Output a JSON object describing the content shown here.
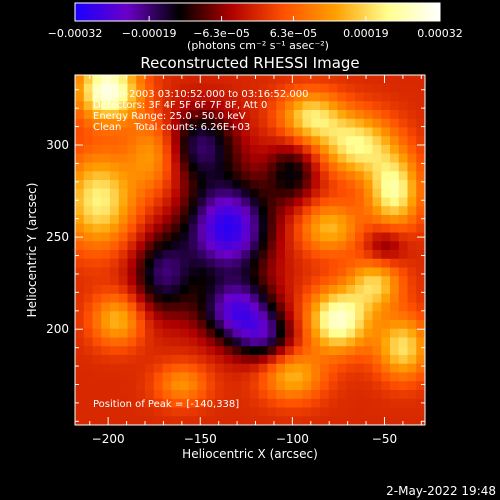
{
  "chart_data": {
    "type": "heatmap",
    "title": "Reconstructed RHESSI Image",
    "xlabel": "Heliocentric X (arcsec)",
    "ylabel": "Heliocentric Y (arcsec)",
    "xlim": [
      -218,
      -28
    ],
    "ylim": [
      148,
      338
    ],
    "x_ticks": [
      -200,
      -150,
      -100,
      -50
    ],
    "x_tick_labels": [
      "−200",
      "−150",
      "−100",
      "−50"
    ],
    "y_ticks": [
      200,
      250,
      300
    ],
    "y_tick_labels": [
      "200",
      "250",
      "300"
    ],
    "colorbar": {
      "range": [
        -0.00032,
        0.00032
      ],
      "ticks": [
        -0.00032,
        -0.00019,
        -6.3e-05,
        6.3e-05,
        0.00019,
        0.00032
      ],
      "tick_labels": [
        "−0.00032",
        "−0.00019",
        "−6.3e−05",
        "6.3e−05",
        "0.00019",
        "0.00032"
      ],
      "unit_label": "(photons cm⁻² s⁻¹ asec⁻²)",
      "colors": [
        "#1a00ff",
        "#6a00c8",
        "#000000",
        "#b00000",
        "#ff5000",
        "#ffa000",
        "#ffff90",
        "#ffffff"
      ]
    },
    "annotations": [
      "23-Jun-2003 03:10:52.000 to 03:16:52.000",
      "Detectors: 3F 4F 5F 6F 7F 8F, Att 0",
      "Energy Range: 25.0 - 50.0 keV",
      "Clean    Total counts: 6.26E+03"
    ],
    "peak_label": "Position of Peak = [-140,338]",
    "peak": {
      "x": -140,
      "y": 338
    },
    "intensity_field": {
      "grid": [
        40,
        40
      ],
      "background": 0.0,
      "features": [
        {
          "x": -200,
          "y": 330,
          "sx": 12,
          "sy": 12,
          "amp": 0.0003
        },
        {
          "x": -205,
          "y": 270,
          "sx": 14,
          "sy": 18,
          "amp": 0.00022
        },
        {
          "x": -195,
          "y": 205,
          "sx": 10,
          "sy": 10,
          "amp": 0.00016
        },
        {
          "x": -175,
          "y": 295,
          "sx": 10,
          "sy": 14,
          "amp": 0.00014
        },
        {
          "x": -90,
          "y": 315,
          "sx": 12,
          "sy": 10,
          "amp": 0.0002
        },
        {
          "x": -65,
          "y": 300,
          "sx": 14,
          "sy": 12,
          "amp": 0.00022
        },
        {
          "x": -45,
          "y": 275,
          "sx": 10,
          "sy": 14,
          "amp": 0.00024
        },
        {
          "x": -80,
          "y": 255,
          "sx": 12,
          "sy": 10,
          "amp": 0.00016
        },
        {
          "x": -55,
          "y": 225,
          "sx": 10,
          "sy": 10,
          "amp": 0.00018
        },
        {
          "x": -75,
          "y": 205,
          "sx": 12,
          "sy": 12,
          "amp": 0.00028
        },
        {
          "x": -40,
          "y": 190,
          "sx": 10,
          "sy": 12,
          "amp": 0.0002
        },
        {
          "x": -100,
          "y": 175,
          "sx": 12,
          "sy": 10,
          "amp": 0.00016
        },
        {
          "x": -160,
          "y": 170,
          "sx": 10,
          "sy": 8,
          "amp": 0.00012
        },
        {
          "x": -135,
          "y": 255,
          "sx": 16,
          "sy": 18,
          "amp": -0.0003
        },
        {
          "x": -130,
          "y": 210,
          "sx": 14,
          "sy": 12,
          "amp": -0.00024
        },
        {
          "x": -150,
          "y": 300,
          "sx": 14,
          "sy": 14,
          "amp": -0.00018
        },
        {
          "x": -170,
          "y": 230,
          "sx": 12,
          "sy": 16,
          "amp": -0.00018
        },
        {
          "x": -100,
          "y": 285,
          "sx": 10,
          "sy": 12,
          "amp": -0.00014
        },
        {
          "x": -115,
          "y": 195,
          "sx": 12,
          "sy": 10,
          "amp": -0.00016
        },
        {
          "x": -50,
          "y": 245,
          "sx": 8,
          "sy": 8,
          "amp": -0.0001
        }
      ]
    }
  },
  "timestamp": "2-May-2022 19:48"
}
